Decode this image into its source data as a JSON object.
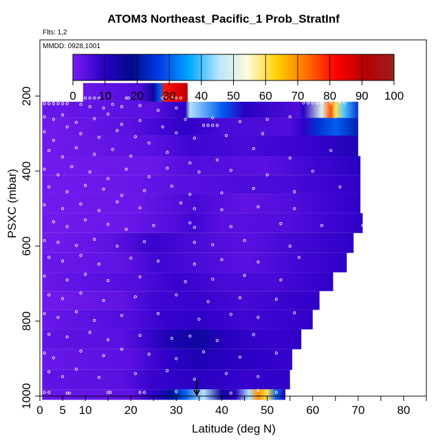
{
  "header": {
    "title": "ATOM3 Northeast_Pacific_1 Prob_StratInf",
    "flights": "Flts: 1,2",
    "dates": "MMDD: 0928,1001"
  },
  "colors": {
    "frame": "#000000",
    "background": "#ffffff",
    "circle": "#ffffff",
    "marker": "#000000"
  },
  "chart_data": {
    "type": "heatmap",
    "title": "ATOM3 Northeast_Pacific_1 Prob_StratInf",
    "xlabel": "Latitude (deg N)",
    "ylabel": "PSXC (mbar)",
    "xlim": [
      0,
      85
    ],
    "ylim": [
      1000,
      50
    ],
    "y_reversed": true,
    "xticks": [
      0,
      5,
      10,
      20,
      30,
      40,
      50,
      60,
      70,
      80
    ],
    "xminorticks": [
      15,
      25,
      35,
      45,
      55,
      65,
      75,
      85
    ],
    "yticks": [
      200,
      400,
      600,
      800,
      1000
    ],
    "colorbar": {
      "range": [
        0,
        100
      ],
      "ticks": [
        0,
        10,
        20,
        30,
        40,
        50,
        60,
        70,
        80,
        90,
        100
      ],
      "colors": [
        "#7a1df2",
        "#2e00c8",
        "#000a8a",
        "#003ee8",
        "#00aaff",
        "#b9e6ff",
        "#fffbd8",
        "#ffd000",
        "#ff7000",
        "#ff0000",
        "#b80000",
        "#9b1f1f"
      ]
    },
    "arrow_marker_latitude": 34.5,
    "layers": [
      {
        "p_top": 165,
        "p_bot": 215,
        "x_start": 9.5,
        "x_end": 32.5,
        "stops": [
          [
            9.5,
            2
          ],
          [
            22,
            5
          ],
          [
            25,
            15
          ],
          [
            26.5,
            30
          ],
          [
            27.5,
            80
          ],
          [
            30,
            85
          ],
          [
            32.5,
            90
          ]
        ]
      },
      {
        "p_top": 215,
        "p_bot": 258,
        "x_start": 0.5,
        "x_end": 70,
        "stops": [
          [
            0.5,
            2
          ],
          [
            25,
            4
          ],
          [
            32,
            10
          ],
          [
            33,
            45
          ],
          [
            40,
            30
          ],
          [
            45,
            10
          ],
          [
            57,
            5
          ],
          [
            58,
            10
          ],
          [
            62,
            50
          ],
          [
            64,
            75
          ],
          [
            65,
            60
          ],
          [
            67,
            40
          ],
          [
            70,
            25
          ]
        ]
      },
      {
        "p_top": 258,
        "p_bot": 305,
        "x_start": 0.5,
        "x_end": 70,
        "stops": [
          [
            0.5,
            1
          ],
          [
            20,
            4
          ],
          [
            32,
            9
          ],
          [
            40,
            6
          ],
          [
            55,
            5
          ],
          [
            58,
            9
          ],
          [
            61,
            25
          ],
          [
            65,
            30
          ],
          [
            70,
            22
          ]
        ]
      },
      {
        "p_top": 305,
        "p_bot": 360,
        "x_start": 0.5,
        "x_end": 70,
        "stops": [
          [
            0.5,
            1
          ],
          [
            25,
            4
          ],
          [
            33,
            7
          ],
          [
            45,
            6
          ],
          [
            60,
            8
          ],
          [
            70,
            12
          ]
        ]
      },
      {
        "p_top": 360,
        "p_bot": 410,
        "x_start": 0.5,
        "x_end": 70.5,
        "stops": [
          [
            0.5,
            1
          ],
          [
            25,
            2
          ],
          [
            34,
            5
          ],
          [
            50,
            4
          ],
          [
            60,
            7
          ],
          [
            70.5,
            10
          ]
        ]
      },
      {
        "p_top": 410,
        "p_bot": 460,
        "x_start": 0.5,
        "x_end": 70.5,
        "stops": [
          [
            0.5,
            1
          ],
          [
            20,
            2
          ],
          [
            30,
            4
          ],
          [
            40,
            5
          ],
          [
            55,
            6
          ],
          [
            70.5,
            9
          ]
        ]
      },
      {
        "p_top": 460,
        "p_bot": 512,
        "x_start": 0.5,
        "x_end": 70.5,
        "stops": [
          [
            0.5,
            1
          ],
          [
            22,
            2
          ],
          [
            34,
            6
          ],
          [
            45,
            3
          ],
          [
            55,
            5
          ],
          [
            70.5,
            9
          ]
        ]
      },
      {
        "p_top": 512,
        "p_bot": 565,
        "x_start": 0.5,
        "x_end": 71,
        "stops": [
          [
            0.5,
            1
          ],
          [
            20,
            2
          ],
          [
            30,
            5
          ],
          [
            34,
            7
          ],
          [
            40,
            4
          ],
          [
            55,
            5
          ],
          [
            71,
            9
          ]
        ]
      },
      {
        "p_top": 565,
        "p_bot": 618,
        "x_start": 0.5,
        "x_end": 69,
        "stops": [
          [
            0.5,
            1
          ],
          [
            15,
            3
          ],
          [
            25,
            8
          ],
          [
            33,
            6
          ],
          [
            45,
            4
          ],
          [
            58,
            7
          ],
          [
            69,
            9
          ]
        ]
      },
      {
        "p_top": 618,
        "p_bot": 670,
        "x_start": 0.5,
        "x_end": 67.5,
        "stops": [
          [
            0.5,
            2
          ],
          [
            18,
            3
          ],
          [
            26,
            7
          ],
          [
            33,
            6
          ],
          [
            45,
            4
          ],
          [
            58,
            7
          ],
          [
            67.5,
            9
          ]
        ]
      },
      {
        "p_top": 670,
        "p_bot": 720,
        "x_start": 0.5,
        "x_end": 64.5,
        "stops": [
          [
            0.5,
            2
          ],
          [
            22,
            5
          ],
          [
            30,
            8
          ],
          [
            40,
            6
          ],
          [
            52,
            6
          ],
          [
            64.5,
            9
          ]
        ]
      },
      {
        "p_top": 720,
        "p_bot": 770,
        "x_start": 0.5,
        "x_end": 61.5,
        "stops": [
          [
            0.5,
            1
          ],
          [
            18,
            3
          ],
          [
            25,
            7
          ],
          [
            35,
            8
          ],
          [
            45,
            6
          ],
          [
            55,
            8
          ],
          [
            61.5,
            9
          ]
        ]
      },
      {
        "p_top": 770,
        "p_bot": 822,
        "x_start": 0.5,
        "x_end": 60,
        "stops": [
          [
            0.5,
            2
          ],
          [
            20,
            5
          ],
          [
            27,
            8
          ],
          [
            35,
            9
          ],
          [
            45,
            7
          ],
          [
            55,
            8
          ],
          [
            60,
            9
          ]
        ]
      },
      {
        "p_top": 822,
        "p_bot": 875,
        "x_start": 0.5,
        "x_end": 57.5,
        "stops": [
          [
            0.5,
            3
          ],
          [
            18,
            4
          ],
          [
            23,
            7
          ],
          [
            28,
            12
          ],
          [
            35,
            15
          ],
          [
            42,
            10
          ],
          [
            50,
            8
          ],
          [
            57.5,
            9
          ]
        ]
      },
      {
        "p_top": 875,
        "p_bot": 930,
        "x_start": 0.5,
        "x_end": 55.5,
        "stops": [
          [
            0.5,
            2
          ],
          [
            20,
            4
          ],
          [
            28,
            9
          ],
          [
            35,
            12
          ],
          [
            42,
            10
          ],
          [
            50,
            9
          ],
          [
            55.5,
            8
          ]
        ]
      },
      {
        "p_top": 930,
        "p_bot": 982,
        "x_start": 0.5,
        "x_end": 55,
        "stops": [
          [
            0.5,
            3
          ],
          [
            18,
            4
          ],
          [
            25,
            8
          ],
          [
            35,
            10
          ],
          [
            45,
            8
          ],
          [
            55,
            9
          ]
        ]
      },
      {
        "p_top": 982,
        "p_bot": 1010,
        "x_start": 0.5,
        "x_end": 54,
        "stops": [
          [
            0.5,
            2
          ],
          [
            20,
            3
          ],
          [
            25,
            9
          ],
          [
            29,
            20
          ],
          [
            32,
            30
          ],
          [
            36,
            45
          ],
          [
            40,
            15
          ],
          [
            43,
            10
          ],
          [
            46,
            45
          ],
          [
            48,
            70
          ],
          [
            50,
            60
          ],
          [
            52,
            30
          ],
          [
            54,
            10
          ]
        ]
      }
    ],
    "circles": [
      [
        10,
        205
      ],
      [
        11,
        205
      ],
      [
        12,
        205
      ],
      [
        13,
        205
      ],
      [
        19,
        205
      ],
      [
        19.5,
        205
      ],
      [
        27,
        205
      ],
      [
        28,
        205
      ],
      [
        29,
        205
      ],
      [
        30,
        205
      ],
      [
        31,
        205
      ],
      [
        1,
        220
      ],
      [
        2,
        220
      ],
      [
        3,
        220
      ],
      [
        4,
        220
      ],
      [
        5,
        220
      ],
      [
        6,
        220
      ],
      [
        9,
        222
      ],
      [
        11,
        228
      ],
      [
        14,
        232
      ],
      [
        16,
        222
      ],
      [
        18,
        228
      ],
      [
        22,
        225
      ],
      [
        26,
        238
      ],
      [
        30,
        232
      ],
      [
        58,
        218
      ],
      [
        59,
        218
      ],
      [
        60,
        218
      ],
      [
        61,
        218
      ],
      [
        62,
        218
      ],
      [
        64,
        218
      ],
      [
        66,
        218
      ],
      [
        67,
        218
      ],
      [
        36,
        278
      ],
      [
        37,
        278
      ],
      [
        38,
        278
      ],
      [
        39,
        278
      ],
      [
        1,
        255
      ],
      [
        3,
        262
      ],
      [
        5,
        250
      ],
      [
        8,
        270
      ],
      [
        12,
        260
      ],
      [
        15,
        248
      ],
      [
        18,
        275
      ],
      [
        22,
        265
      ],
      [
        27,
        282
      ],
      [
        32,
        262
      ],
      [
        38,
        258
      ],
      [
        44,
        268
      ],
      [
        50,
        262
      ],
      [
        55,
        255
      ],
      [
        1,
        295
      ],
      [
        3,
        318
      ],
      [
        6,
        282
      ],
      [
        9,
        300
      ],
      [
        13,
        310
      ],
      [
        17,
        292
      ],
      [
        21,
        308
      ],
      [
        24,
        325
      ],
      [
        30,
        298
      ],
      [
        34,
        312
      ],
      [
        41,
        305
      ],
      [
        49,
        300
      ],
      [
        2,
        345
      ],
      [
        5,
        362
      ],
      [
        8,
        338
      ],
      [
        12,
        355
      ],
      [
        16,
        342
      ],
      [
        20,
        360
      ],
      [
        28,
        350
      ],
      [
        33,
        378
      ],
      [
        39,
        370
      ],
      [
        47,
        340
      ],
      [
        55,
        365
      ],
      [
        64,
        345
      ],
      [
        1,
        395
      ],
      [
        4,
        410
      ],
      [
        7,
        388
      ],
      [
        11,
        402
      ],
      [
        15,
        420
      ],
      [
        19,
        395
      ],
      [
        24,
        415
      ],
      [
        28,
        392
      ],
      [
        35,
        402
      ],
      [
        42,
        398
      ],
      [
        50,
        410
      ],
      [
        60,
        400
      ],
      [
        2,
        442
      ],
      [
        6,
        455
      ],
      [
        10,
        438
      ],
      [
        14,
        448
      ],
      [
        18,
        465
      ],
      [
        23,
        452
      ],
      [
        29,
        440
      ],
      [
        33,
        462
      ],
      [
        40,
        458
      ],
      [
        47,
        446
      ],
      [
        56,
        455
      ],
      [
        66,
        442
      ],
      [
        1,
        490
      ],
      [
        5,
        500
      ],
      [
        9,
        488
      ],
      [
        13,
        505
      ],
      [
        17,
        482
      ],
      [
        22,
        498
      ],
      [
        31,
        485
      ],
      [
        34,
        500
      ],
      [
        40,
        503
      ],
      [
        48,
        495
      ],
      [
        56,
        500
      ],
      [
        3,
        535
      ],
      [
        6,
        548
      ],
      [
        10,
        530
      ],
      [
        15,
        542
      ],
      [
        19,
        555
      ],
      [
        25,
        545
      ],
      [
        33,
        538
      ],
      [
        34,
        550
      ],
      [
        42,
        548
      ],
      [
        53,
        540
      ],
      [
        62,
        545
      ],
      [
        71,
        545
      ],
      [
        1,
        585
      ],
      [
        4,
        590
      ],
      [
        8,
        598
      ],
      [
        12,
        582
      ],
      [
        17,
        600
      ],
      [
        23,
        588
      ],
      [
        34,
        590
      ],
      [
        38,
        596
      ],
      [
        45,
        585
      ],
      [
        55,
        600
      ],
      [
        2,
        630
      ],
      [
        5,
        640
      ],
      [
        9,
        625
      ],
      [
        13,
        648
      ],
      [
        20,
        632
      ],
      [
        26,
        640
      ],
      [
        34,
        648
      ],
      [
        40,
        636
      ],
      [
        48,
        642
      ],
      [
        57,
        630
      ],
      [
        1,
        680
      ],
      [
        6,
        690
      ],
      [
        10,
        675
      ],
      [
        15,
        692
      ],
      [
        22,
        682
      ],
      [
        32,
        695
      ],
      [
        38,
        688
      ],
      [
        45,
        678
      ],
      [
        53,
        690
      ],
      [
        2,
        730
      ],
      [
        5,
        740
      ],
      [
        9,
        725
      ],
      [
        14,
        745
      ],
      [
        21,
        735
      ],
      [
        30,
        730
      ],
      [
        37,
        748
      ],
      [
        44,
        738
      ],
      [
        52,
        742
      ],
      [
        1,
        780
      ],
      [
        4,
        790
      ],
      [
        8,
        775
      ],
      [
        12,
        798
      ],
      [
        18,
        785
      ],
      [
        26,
        780
      ],
      [
        35,
        795
      ],
      [
        42,
        782
      ],
      [
        48,
        790
      ],
      [
        56,
        778
      ],
      [
        2,
        835
      ],
      [
        6,
        842
      ],
      [
        11,
        830
      ],
      [
        15,
        850
      ],
      [
        22,
        838
      ],
      [
        29,
        846
      ],
      [
        33,
        840
      ],
      [
        39,
        852
      ],
      [
        47,
        836
      ],
      [
        1,
        885
      ],
      [
        3,
        898
      ],
      [
        9,
        880
      ],
      [
        14,
        892
      ],
      [
        18,
        875
      ],
      [
        24,
        888
      ],
      [
        30,
        900
      ],
      [
        36,
        882
      ],
      [
        44,
        896
      ],
      [
        52,
        885
      ],
      [
        2,
        935
      ],
      [
        5,
        948
      ],
      [
        8,
        928
      ],
      [
        13,
        950
      ],
      [
        21,
        940
      ],
      [
        28,
        932
      ],
      [
        34,
        955
      ],
      [
        41,
        940
      ],
      [
        48,
        948
      ],
      [
        1,
        990
      ],
      [
        2,
        990
      ],
      [
        6,
        992
      ],
      [
        6.5,
        992
      ],
      [
        15,
        990
      ],
      [
        15.5,
        990
      ],
      [
        22,
        990
      ],
      [
        23,
        990
      ],
      [
        30,
        988
      ],
      [
        42,
        992
      ],
      [
        48,
        985
      ],
      [
        52,
        990
      ]
    ]
  }
}
